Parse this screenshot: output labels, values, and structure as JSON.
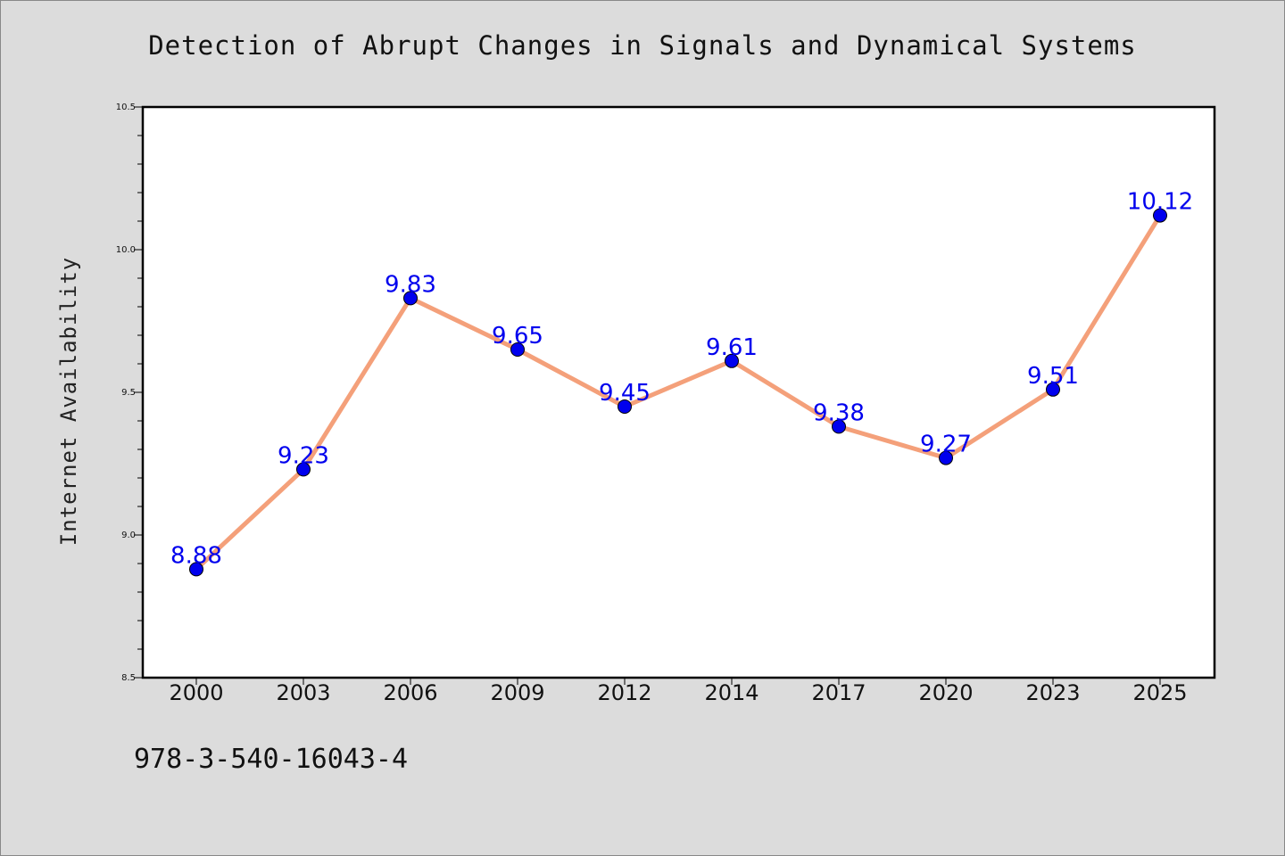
{
  "chart_data": {
    "type": "line",
    "title": "Detection of Abrupt Changes in Signals and Dynamical Systems",
    "xlabel": "",
    "ylabel": "Internet Availability",
    "categories": [
      "2000",
      "2003",
      "2006",
      "2009",
      "2012",
      "2014",
      "2017",
      "2020",
      "2023",
      "2025"
    ],
    "series": [
      {
        "values": [
          8.88,
          9.23,
          9.83,
          9.65,
          9.45,
          9.61,
          9.38,
          9.27,
          9.51,
          10.12
        ],
        "line_color": "#f4a07a",
        "marker_color": "#0000ee"
      }
    ],
    "data_labels": [
      "8.88",
      "9.23",
      "9.83",
      "9.65",
      "9.45",
      "9.61",
      "9.38",
      "9.27",
      "9.51",
      "10.12"
    ],
    "ylim": [
      8.5,
      10.5
    ],
    "yticks": [
      "8.5",
      "9.0",
      "9.5",
      "10.0",
      "10.5"
    ],
    "grid": false,
    "legend": "none"
  },
  "footer": {
    "code": "978-3-540-16043-4"
  }
}
